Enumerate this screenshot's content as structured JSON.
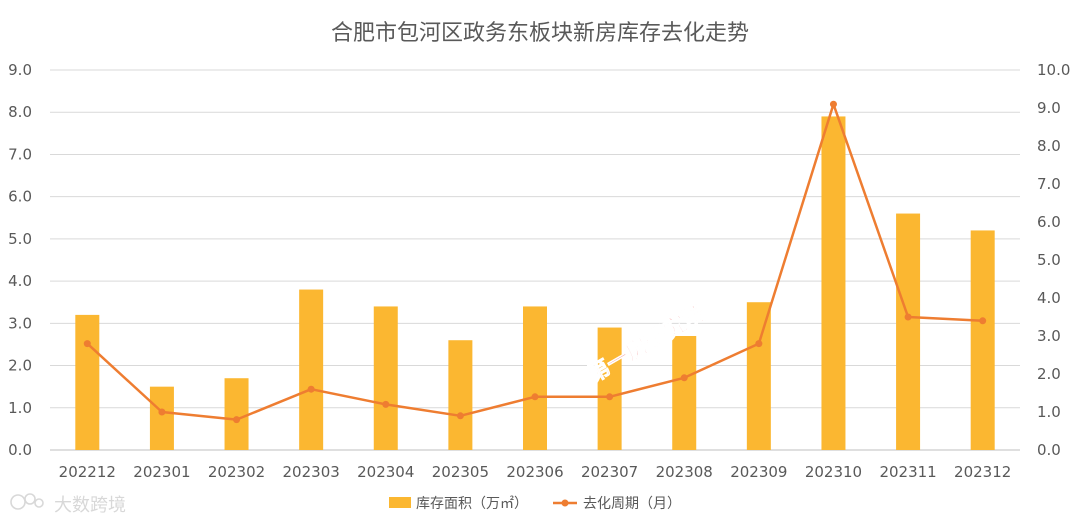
{
  "chart_data": {
    "type": "bar",
    "title": "合肥市包河区政务东板块新房库存去化走势",
    "categories": [
      "202212",
      "202301",
      "202302",
      "202303",
      "202304",
      "202305",
      "202306",
      "202307",
      "202308",
      "202309",
      "202310",
      "202311",
      "202312"
    ],
    "series": [
      {
        "name": "库存面积（万㎡）",
        "type": "bar",
        "axis": "left",
        "color": "#FBB731",
        "values": [
          3.2,
          1.5,
          1.7,
          3.8,
          3.4,
          2.6,
          3.4,
          2.9,
          2.7,
          3.5,
          7.9,
          5.6,
          5.2
        ]
      },
      {
        "name": "去化周期（月）",
        "type": "line",
        "axis": "right",
        "color": "#EE7D31",
        "values": [
          2.8,
          1.0,
          0.8,
          1.6,
          1.2,
          0.9,
          1.4,
          1.4,
          1.9,
          2.8,
          9.1,
          3.5,
          3.4
        ]
      }
    ],
    "ylim_left": [
      0,
      9
    ],
    "ylim_right": [
      0,
      10
    ],
    "yticks_left": [
      "0.0",
      "1.0",
      "2.0",
      "3.0",
      "4.0",
      "5.0",
      "6.0",
      "7.0",
      "8.0",
      "9.0"
    ],
    "yticks_right": [
      "0.0",
      "1.0",
      "2.0",
      "3.0",
      "4.0",
      "5.0",
      "6.0",
      "7.0",
      "8.0",
      "9.0",
      "10.0"
    ],
    "grid": true,
    "legend": "bottom"
  },
  "watermark": "第一房研究院",
  "brand": "大数跨境"
}
